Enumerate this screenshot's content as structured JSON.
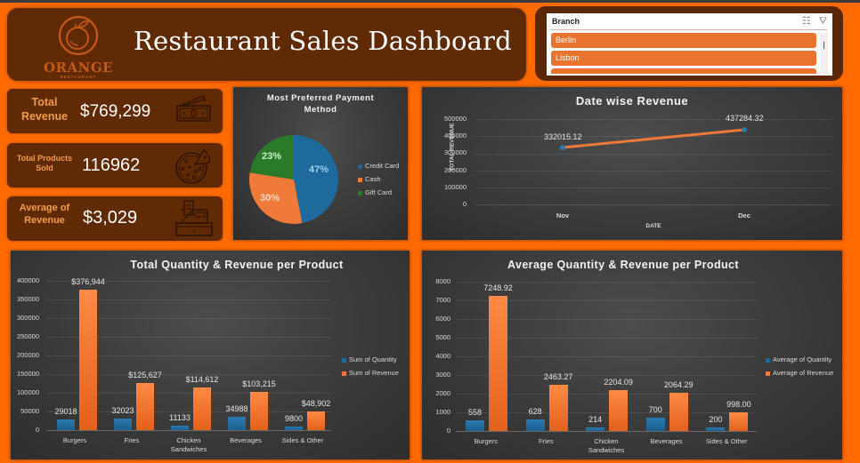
{
  "header": {
    "title": "Restaurant Sales Dashboard",
    "logo": {
      "name": "ORANGE",
      "subtitle": "RESTAURANT",
      "icon": "orange-fruit-icon"
    }
  },
  "slicer": {
    "title": "Branch",
    "icons": [
      "multi-select-icon",
      "clear-filter-icon"
    ],
    "items": [
      "Berlin",
      "Lisbon",
      ""
    ]
  },
  "kpis": [
    {
      "label_line1": "Total",
      "label_line2": "Revenue",
      "value": "$769,299",
      "icon": "money-bill-icon"
    },
    {
      "label_line1": "Total Products",
      "label_line2": "Sold",
      "value": "116962",
      "icon": "pizza-icon"
    },
    {
      "label_line1": "Average of",
      "label_line2": "Revenue",
      "value": "$3,029",
      "icon": "cash-register-icon"
    }
  ],
  "colors": {
    "background": "#ff6a00",
    "panel_brown": "#602a04",
    "blue": "#1f6a9c",
    "orange": "#f07a3a",
    "green": "#2a7a2a"
  },
  "chart_data": [
    {
      "type": "pie",
      "title": "Most Preferred Payment Method",
      "title_line1": "Most Preferred Payment",
      "title_line2": "Method",
      "categories": [
        "Credit Card",
        "Cash",
        "Gift Card"
      ],
      "values": [
        47,
        30,
        23
      ],
      "labels": [
        "47%",
        "30%",
        "23%"
      ],
      "legend_position": "right"
    },
    {
      "type": "line",
      "title": "Date wise Revenue",
      "xlabel": "DATE",
      "ylabel": "TOTAL REVENUE",
      "categories": [
        "Nov",
        "Dec"
      ],
      "values": [
        332015.12,
        437284.32
      ],
      "labels": [
        "332015.12",
        "437284.32"
      ],
      "ylim": [
        0,
        500000
      ],
      "yticks": [
        "500000",
        "400000",
        "300000",
        "200000",
        "100000",
        "0"
      ],
      "grid": true
    },
    {
      "type": "bar",
      "title": "Total Quantity & Revenue per Product",
      "categories": [
        "Burgers",
        "Fries",
        "Chicken Sandwiches",
        "Beverages",
        "Sides & Other"
      ],
      "category_lines": [
        [
          "Burgers"
        ],
        [
          "Fries"
        ],
        [
          "Chicken",
          "Sandwiches"
        ],
        [
          "Beverages"
        ],
        [
          "Sides & Other"
        ]
      ],
      "series": [
        {
          "name": "Sum of Quantity",
          "values": [
            29018,
            32023,
            11133,
            34988,
            9800
          ],
          "labels": [
            "29018",
            "32023",
            "11133",
            "34988",
            "9800"
          ]
        },
        {
          "name": "Sum of Revenue",
          "values": [
            376944,
            125627,
            114612,
            103215,
            48902
          ],
          "labels": [
            "$376,944",
            "$125,627",
            "$114,612",
            "$103,215",
            "$48,902"
          ]
        }
      ],
      "ylim": [
        0,
        400000
      ],
      "yticks": [
        "400000",
        "350000",
        "300000",
        "250000",
        "200000",
        "150000",
        "100000",
        "50000",
        "0"
      ],
      "legend_position": "right",
      "grid": true
    },
    {
      "type": "bar",
      "title": "Average Quantity & Revenue per Product",
      "categories": [
        "Burgers",
        "Fries",
        "Chicken Sandwiches",
        "Beverages",
        "Sides & Other"
      ],
      "category_lines": [
        [
          "Burgers"
        ],
        [
          "Fries"
        ],
        [
          "Chicken",
          "Sandwiches"
        ],
        [
          "Beverages"
        ],
        [
          "Sides & Other"
        ]
      ],
      "series": [
        {
          "name": "Average of Quantity",
          "values": [
            558,
            628,
            214,
            700,
            200
          ],
          "labels": [
            "558",
            "628",
            "214",
            "700",
            "200"
          ]
        },
        {
          "name": "Average of Revenue",
          "values": [
            7248.92,
            2463.27,
            2204.09,
            2064.29,
            998.0
          ],
          "labels": [
            "7248.92",
            "2463.27",
            "2204.09",
            "2064.29",
            "998.00"
          ]
        }
      ],
      "ylim": [
        0,
        8000
      ],
      "yticks": [
        "8000",
        "7000",
        "6000",
        "5000",
        "4000",
        "3000",
        "2000",
        "1000",
        "0"
      ],
      "legend_position": "right",
      "grid": true
    }
  ]
}
